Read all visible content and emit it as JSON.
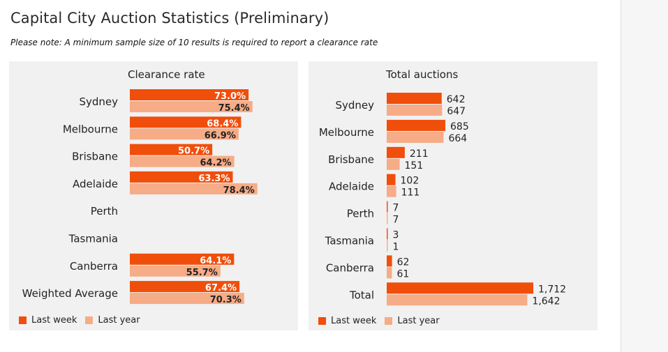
{
  "page": {
    "title": "Capital City Auction Statistics (Preliminary)",
    "note": "Please note: A minimum sample size of 10 results is required to report a clearance rate"
  },
  "colors": {
    "last_week": "#f04e0b",
    "last_year": "#f6ac86"
  },
  "legend": {
    "last_week": "Last week",
    "last_year": "Last year"
  },
  "chart_data": [
    {
      "type": "bar",
      "orientation": "horizontal",
      "title": "Clearance rate",
      "categories": [
        "Sydney",
        "Melbourne",
        "Brisbane",
        "Adelaide",
        "Perth",
        "Tasmania",
        "Canberra",
        "Weighted Average"
      ],
      "series": [
        {
          "name": "Last week",
          "values": [
            73.0,
            68.4,
            50.7,
            63.3,
            null,
            null,
            64.1,
            67.4
          ],
          "labels": [
            "73.0%",
            "68.4%",
            "50.7%",
            "63.3%",
            "",
            "",
            "64.1%",
            "67.4%"
          ]
        },
        {
          "name": "Last year",
          "values": [
            75.4,
            66.9,
            64.2,
            78.4,
            null,
            null,
            55.7,
            70.3
          ],
          "labels": [
            "75.4%",
            "66.9%",
            "64.2%",
            "78.4%",
            "",
            "",
            "55.7%",
            "70.3%"
          ]
        }
      ],
      "xlim": [
        0,
        100
      ],
      "grid": false,
      "legend_position": "bottom-left"
    },
    {
      "type": "bar",
      "orientation": "horizontal",
      "title": "Total auctions",
      "categories": [
        "Sydney",
        "Melbourne",
        "Brisbane",
        "Adelaide",
        "Perth",
        "Tasmania",
        "Canberra",
        "Total"
      ],
      "series": [
        {
          "name": "Last week",
          "values": [
            642,
            685,
            211,
            102,
            7,
            3,
            62,
            1712
          ],
          "labels": [
            "642",
            "685",
            "211",
            "102",
            "7",
            "3",
            "62",
            "1,712"
          ]
        },
        {
          "name": "Last year",
          "values": [
            647,
            664,
            151,
            111,
            7,
            1,
            61,
            1642
          ],
          "labels": [
            "647",
            "664",
            "151",
            "111",
            "7",
            "1",
            "61",
            "1,642"
          ]
        }
      ],
      "xlim": [
        0,
        1712
      ],
      "grid": false,
      "legend_position": "bottom-left"
    }
  ]
}
